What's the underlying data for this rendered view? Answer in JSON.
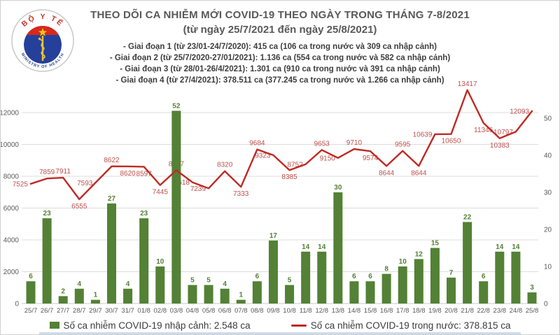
{
  "logo": {
    "top_text": "BỘ Y TẾ",
    "bottom_text": "MINISTRY OF HEALTH",
    "colors": {
      "band_red": "#d7281d",
      "circle_blue": "#25409a",
      "star_gold": "#f5c518",
      "ring_gray": "#c9c9c9",
      "text_red": "#c7342a"
    }
  },
  "header": {
    "title": "THEO DÕI CA NHIỄM MỚI COVID-19 THEO NGÀY TRONG THÁNG 7-8/2021",
    "subtitle": "(từ ngày 25/7/2021 đến ngày 25/8/2021)",
    "bullets": [
      "- Giai đoạn 1 (từ 23/01-24/7/2020): 415 ca (106 ca trong nước và 309 ca nhập cảnh)",
      "- Giai đoạn 2 (từ 25/7/2020-27/01/2021): 1.136 ca (554 ca trong nước và 582 ca nhập cảnh)",
      "- Giai đoạn 3 (từ 28/01-26/4/2021): 1.301 ca (910 ca trong nước và 391 ca nhập cảnh)",
      "- Giai đoạn 4 (từ 27/4/2021): 378.511 ca (377.245 ca trong nước và 1.266 ca nhập cảnh)"
    ]
  },
  "legend": {
    "bar_label": "Số ca nhiễm COVID-19 nhập cảnh: 2.548 ca",
    "line_label": "Số ca nhiễm COVID-19 trong nước: 378.815 ca"
  },
  "chart_data": {
    "type": "bar",
    "title": "THEO DÕI CA NHIỄM MỚI COVID-19 THEO NGÀY TRONG THÁNG 7-8/2021",
    "categories": [
      "25/7",
      "26/7",
      "27/7",
      "28/7",
      "29/7",
      "30/7",
      "31/7",
      "01/8",
      "02/8",
      "03/8",
      "04/8",
      "05/8",
      "06/8",
      "07/8",
      "08/8",
      "09/8",
      "10/8",
      "11/8",
      "12/8",
      "13/8",
      "14/8",
      "15/8",
      "16/8",
      "17/8",
      "18/8",
      "19/8",
      "20/8",
      "21/8",
      "22/8",
      "23/8",
      "24/8",
      "25/8"
    ],
    "series": [
      {
        "name": "Số ca nhiễm COVID-19 nhập cảnh",
        "type": "bar",
        "axis": "right",
        "color": "#538135",
        "values": [
          6,
          23,
          2,
          4,
          1,
          27,
          4,
          23,
          10,
          52,
          5,
          5,
          4,
          1,
          6,
          17,
          5,
          14,
          14,
          30,
          6,
          6,
          8,
          10,
          12,
          15,
          7,
          22,
          6,
          14,
          14,
          3
        ]
      },
      {
        "name": "Số ca nhiễm COVID-19 trong nước",
        "type": "line",
        "axis": "left",
        "color": "#be2a23",
        "label_color": "#c0504d",
        "values": [
          7525,
          7859,
          7911,
          6555,
          7593,
          8622,
          8620,
          8597,
          7445,
          8377,
          7618,
          7239,
          8320,
          7333,
          9684,
          9323,
          8385,
          8752,
          9653,
          9150,
          9710,
          9574,
          8644,
          9595,
          8644,
          10639,
          10650,
          13417,
          11346,
          10383,
          10797,
          12093
        ],
        "label_placements": [
          "left",
          "above",
          "above",
          "below",
          "left",
          "above",
          "below",
          "below",
          "below",
          "above",
          "left",
          "left",
          "above",
          "below",
          "above",
          "left",
          "below",
          "left",
          "above",
          "left",
          "above",
          "below",
          "below",
          "above",
          "below",
          "left",
          "below",
          "above",
          "below",
          "below",
          "left",
          "left"
        ]
      }
    ],
    "left_axis": {
      "min": 0,
      "max": 14000,
      "ticks": [
        0,
        2000,
        4000,
        6000,
        8000,
        10000,
        12000
      ]
    },
    "right_axis": {
      "min": 0,
      "max": 50,
      "ticks": [
        0,
        10,
        20,
        30,
        40,
        50
      ]
    },
    "grid": true,
    "legend_position": "bottom",
    "axis_text_color": "#595959",
    "grid_color": "#dcdcdc"
  }
}
